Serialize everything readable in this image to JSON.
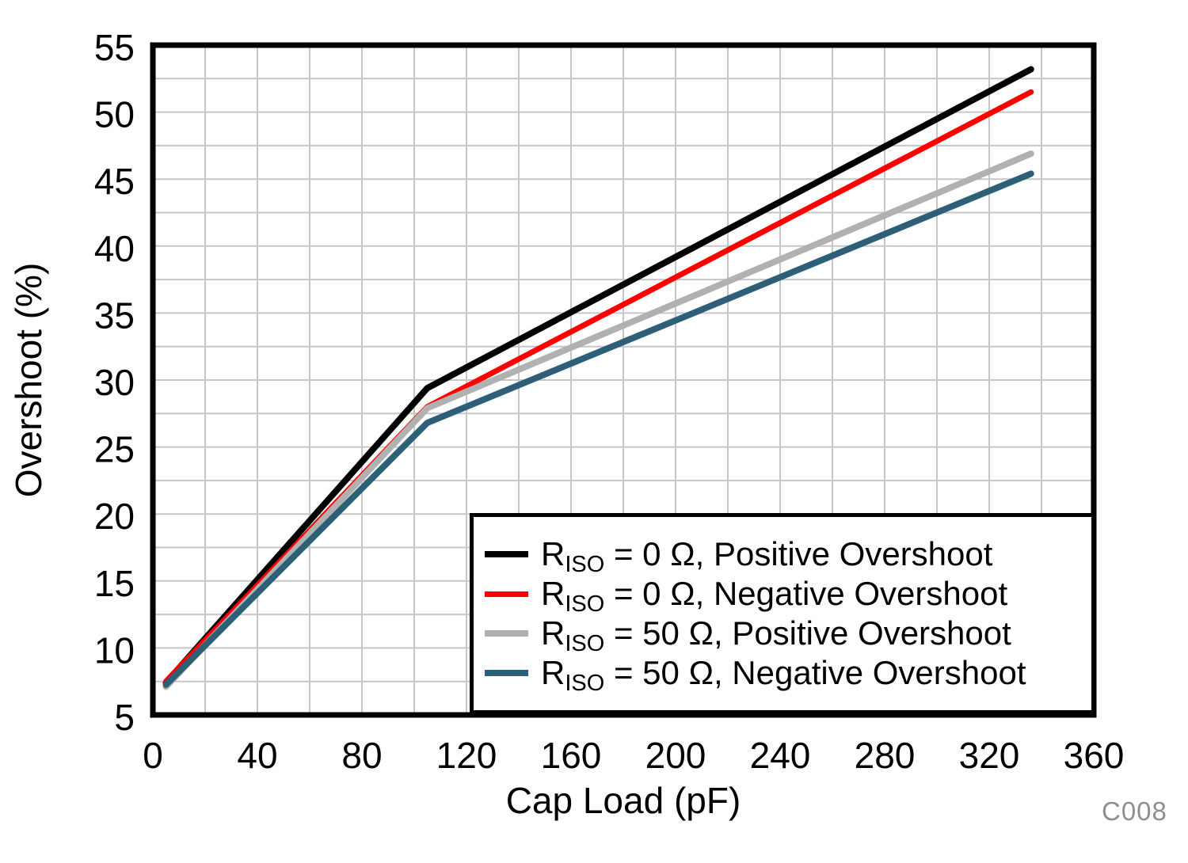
{
  "figure": {
    "watermark": "C008"
  },
  "chart_data": {
    "type": "line",
    "title": "",
    "xlabel": "Cap Load (pF)",
    "ylabel": "Overshoot (%)",
    "xlim": [
      0,
      360
    ],
    "ylim": [
      5,
      55
    ],
    "x_ticks": [
      "0",
      "40",
      "80",
      "120",
      "160",
      "200",
      "240",
      "280",
      "320",
      "360"
    ],
    "y_ticks": [
      "5",
      "10",
      "15",
      "20",
      "25",
      "30",
      "35",
      "40",
      "45",
      "50",
      "55"
    ],
    "x_grid_step": 20,
    "y_grid_step": 2.5,
    "grid": true,
    "grid_color": "#c6c6c6",
    "axis_color": "#000000",
    "legend_position": "inside-bottom-right",
    "series": [
      {
        "name": "riso-0-positive",
        "label": "RISO = 0 Ω, Positive Overshoot",
        "label_prefix": "R",
        "label_sub": "ISO",
        "label_rest": " = 0 Ω, Positive Overshoot",
        "color": "#000000",
        "width": 8,
        "points": [
          [
            5,
            7.4
          ],
          [
            105,
            29.4
          ],
          [
            336,
            53.2
          ]
        ]
      },
      {
        "name": "riso-0-negative",
        "label": "RISO = 0 Ω, Negative Overshoot",
        "label_prefix": "R",
        "label_sub": "ISO",
        "label_rest": " = 0 Ω, Negative Overshoot",
        "color": "#ff0000",
        "width": 7,
        "points": [
          [
            5,
            7.5
          ],
          [
            105,
            28.0
          ],
          [
            336,
            51.5
          ]
        ]
      },
      {
        "name": "riso-50-positive",
        "label": "RISO = 50 Ω, Positive Overshoot",
        "label_prefix": "R",
        "label_sub": "ISO",
        "label_rest": " = 50 Ω, Positive Overshoot",
        "color": "#b1b1b1",
        "width": 8,
        "points": [
          [
            5,
            7.1
          ],
          [
            105,
            27.9
          ],
          [
            336,
            46.9
          ]
        ]
      },
      {
        "name": "riso-50-negative",
        "label": "RISO = 50 Ω, Negative Overshoot",
        "label_prefix": "R",
        "label_sub": "ISO",
        "label_rest": " = 50 Ω, Negative Overshoot",
        "color": "#2d5f78",
        "width": 8,
        "points": [
          [
            5,
            7.25
          ],
          [
            105,
            26.8
          ],
          [
            336,
            45.4
          ]
        ]
      }
    ]
  }
}
